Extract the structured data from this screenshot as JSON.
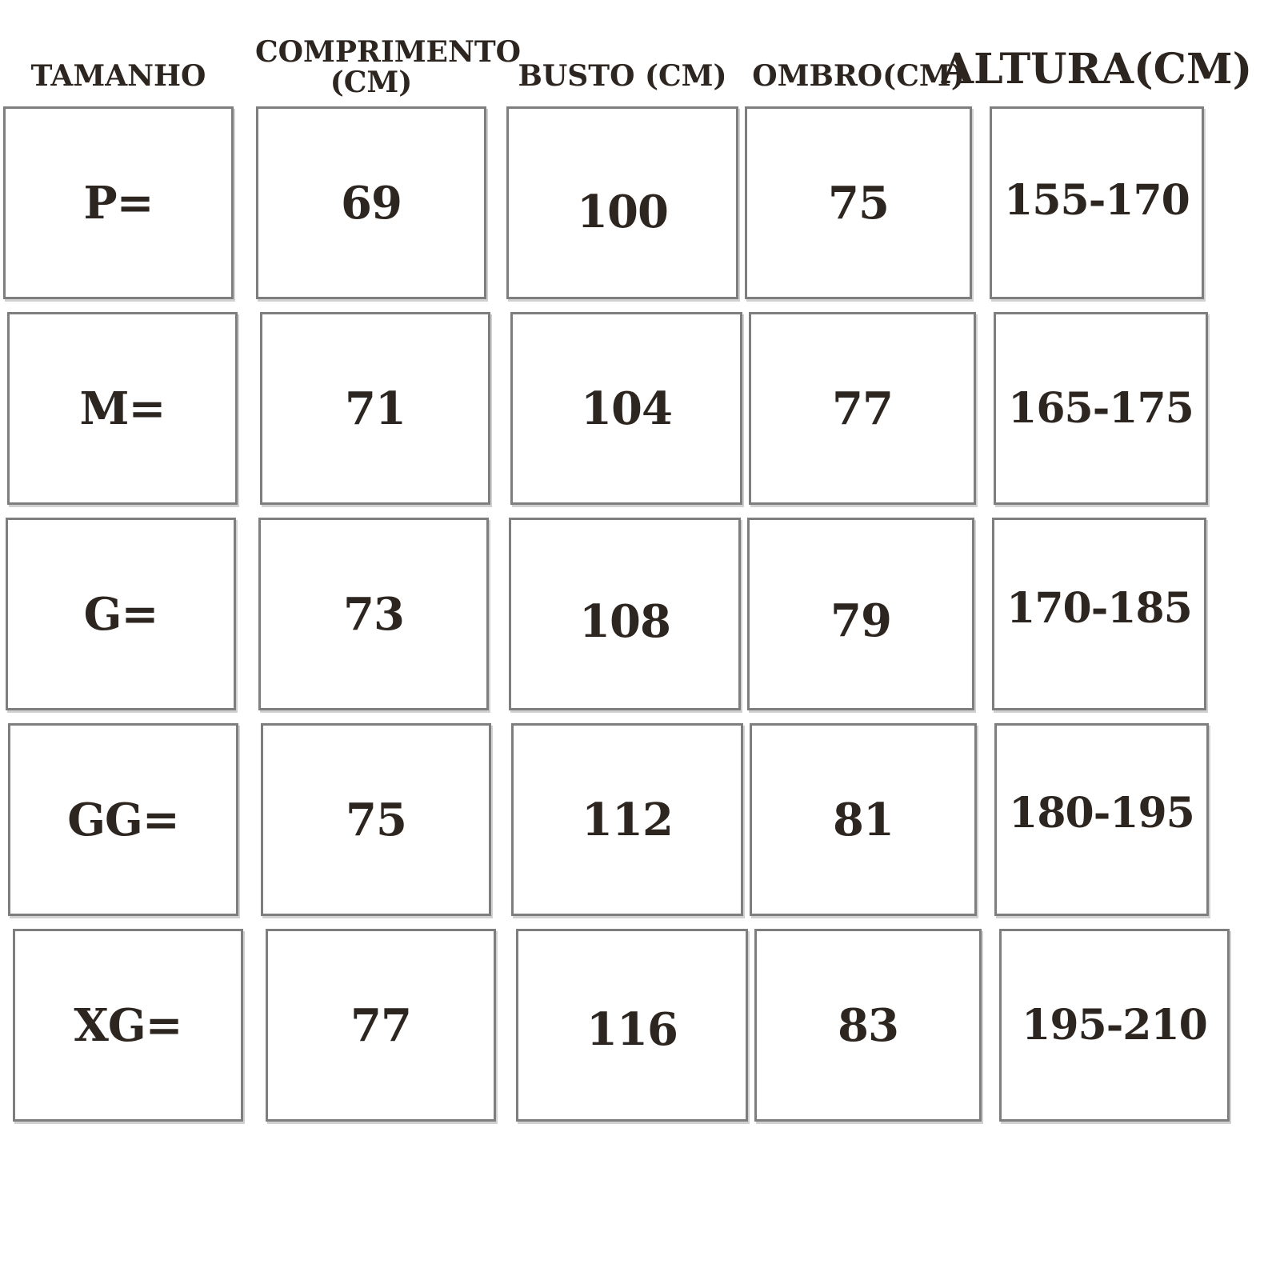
{
  "colors": {
    "background": "#ffffff",
    "text": "#2d2520",
    "cell_border": "#7e7e7e"
  },
  "table": {
    "headers": [
      "TAMANHO",
      "COMPRIMENTO (CM)",
      "BUSTO (CM)",
      "OMBRO(CM)",
      "ALTURA(CM)"
    ],
    "rows": [
      {
        "tamanho": "P=",
        "comprimento": "69",
        "busto": "100",
        "ombro": "75",
        "altura": "155-170"
      },
      {
        "tamanho": "M=",
        "comprimento": "71",
        "busto": "104",
        "ombro": "77",
        "altura": "165-175"
      },
      {
        "tamanho": "G=",
        "comprimento": "73",
        "busto": "108",
        "ombro": "79",
        "altura": "170-185"
      },
      {
        "tamanho": "GG=",
        "comprimento": "75",
        "busto": "112",
        "ombro": "81",
        "altura": "180-195"
      },
      {
        "tamanho": "XG=",
        "comprimento": "77",
        "busto": "116",
        "ombro": "83",
        "altura": "195-210"
      }
    ]
  },
  "chart_data": {
    "type": "table",
    "title": "",
    "columns": [
      "TAMANHO",
      "COMPRIMENTO (CM)",
      "BUSTO (CM)",
      "OMBRO(CM)",
      "ALTURA(CM)"
    ],
    "rows": [
      [
        "P=",
        69,
        100,
        75,
        "155-170"
      ],
      [
        "M=",
        71,
        104,
        77,
        "165-175"
      ],
      [
        "G=",
        73,
        108,
        79,
        "170-185"
      ],
      [
        "GG=",
        75,
        112,
        81,
        "180-195"
      ],
      [
        "XG=",
        77,
        116,
        83,
        "195-210"
      ]
    ],
    "units": "cm",
    "notes": "size chart table; each cell drawn as separate gray-bordered box on white background"
  }
}
